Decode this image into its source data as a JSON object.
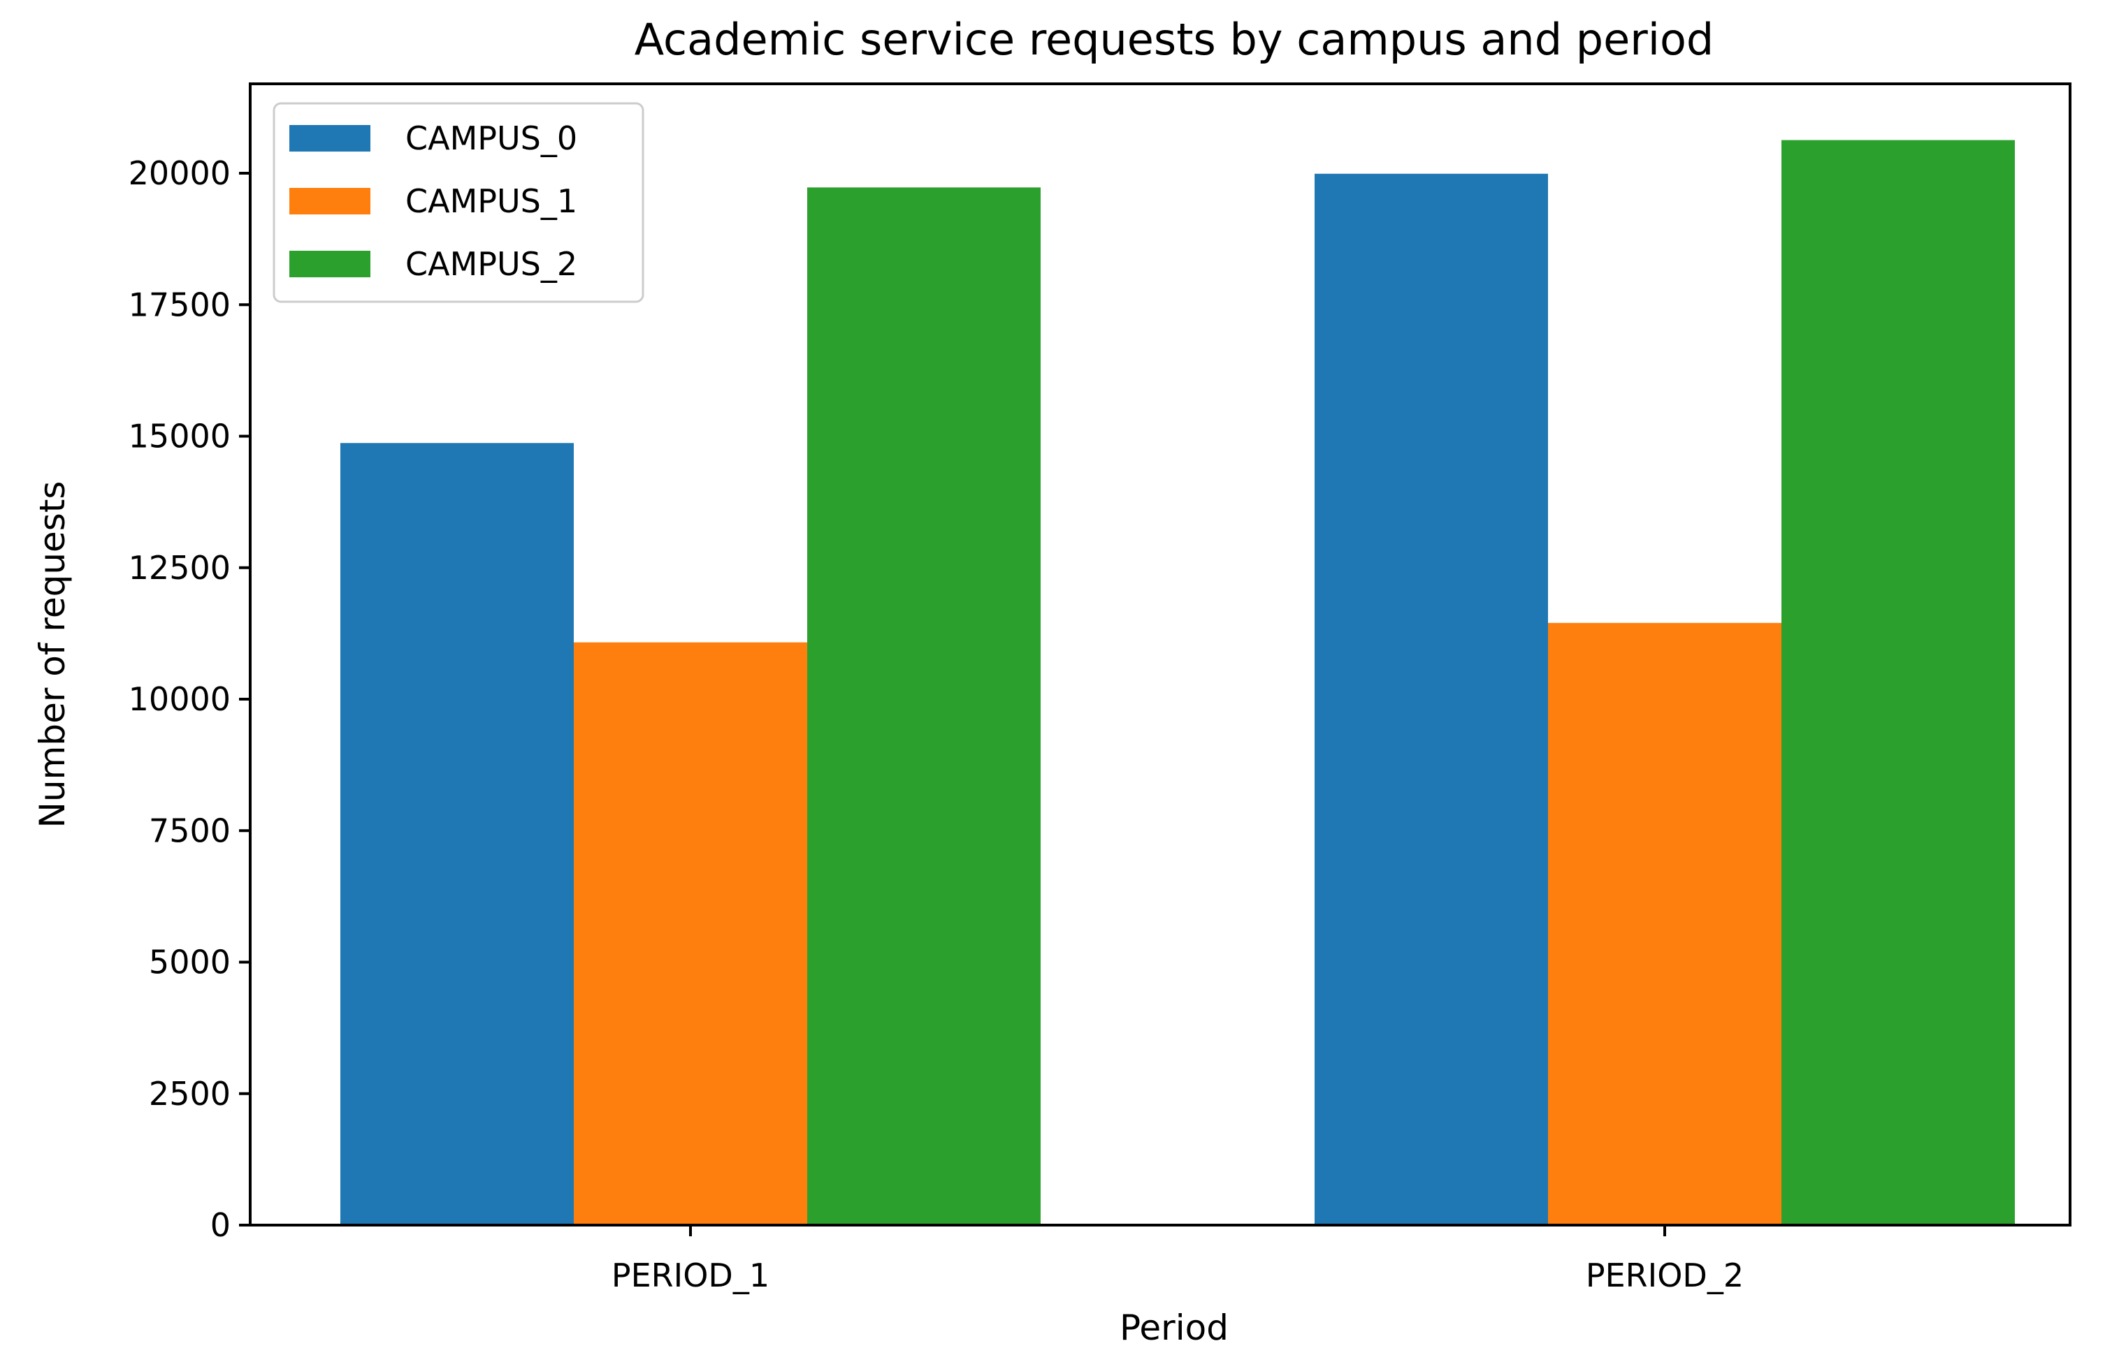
{
  "chart_data": {
    "type": "bar",
    "title": "Academic service requests by campus and period",
    "xlabel": "Period",
    "ylabel": "Number of requests",
    "categories": [
      "PERIOD_1",
      "PERIOD_2"
    ],
    "series": [
      {
        "name": "CAMPUS_0",
        "color": "#1f77b4",
        "values": [
          14870,
          19990
        ]
      },
      {
        "name": "CAMPUS_1",
        "color": "#ff7f0e",
        "values": [
          11080,
          11450
        ]
      },
      {
        "name": "CAMPUS_2",
        "color": "#2ca02c",
        "values": [
          19730,
          20630
        ]
      }
    ],
    "ylim": [
      0,
      21700
    ],
    "yticks": [
      0,
      2500,
      5000,
      7500,
      10000,
      12500,
      15000,
      17500,
      20000
    ],
    "grid": false,
    "legend_position": "top-left"
  }
}
